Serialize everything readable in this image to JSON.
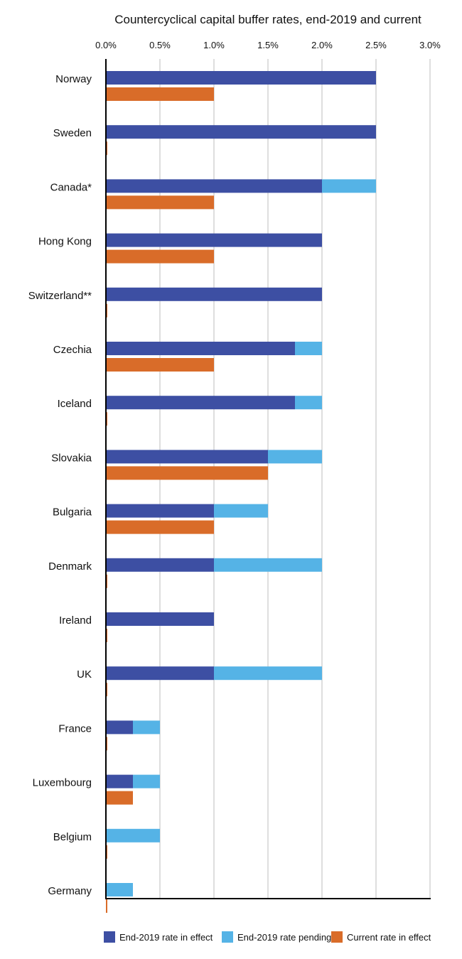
{
  "chart_data": {
    "type": "bar",
    "orientation": "horizontal",
    "title": "Countercyclical capital buffer rates, end-2019 and current",
    "xlabel": "",
    "ylabel": "",
    "xlim": [
      0,
      3.0
    ],
    "x_ticks": [
      "0.0%",
      "0.5%",
      "1.0%",
      "1.5%",
      "2.0%",
      "2.5%",
      "3.0%"
    ],
    "x_tick_values": [
      0,
      0.5,
      1.0,
      1.5,
      2.0,
      2.5,
      3.0
    ],
    "axis_position": "top",
    "grid": true,
    "legend_position": "bottom",
    "categories": [
      "Norway",
      "Sweden",
      "Canada*",
      "Hong Kong",
      "Switzerland**",
      "Czechia",
      "Iceland",
      "Slovakia",
      "Bulgaria",
      "Denmark",
      "Ireland",
      "UK",
      "France",
      "Luxembourg",
      "Belgium",
      "Germany"
    ],
    "series": [
      {
        "name": "End-2019 rate in effect",
        "color": "#3d4fa3",
        "values": [
          2.5,
          2.5,
          2.0,
          2.0,
          2.0,
          1.75,
          1.75,
          1.5,
          1.0,
          1.0,
          1.0,
          1.0,
          0.25,
          0.25,
          0,
          0
        ]
      },
      {
        "name": "End-2019 rate pending",
        "color": "#55b3e6",
        "values": [
          2.5,
          2.5,
          2.5,
          2.0,
          2.0,
          2.0,
          2.0,
          2.0,
          1.5,
          2.0,
          1.0,
          2.0,
          0.5,
          0.5,
          0.5,
          0.25
        ]
      },
      {
        "name": "Current rate in effect",
        "color": "#d96c29",
        "values": [
          1.0,
          0,
          1.0,
          1.0,
          0,
          1.0,
          0,
          1.5,
          1.0,
          0,
          0,
          0,
          0,
          0.25,
          0,
          0
        ]
      }
    ]
  }
}
